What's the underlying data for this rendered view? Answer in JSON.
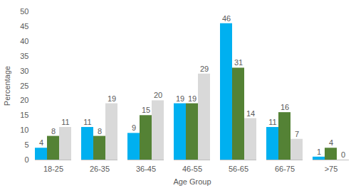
{
  "chart_data": {
    "type": "bar",
    "x_label": "Age Group",
    "y_label": "Percentage",
    "categories": [
      "18-25",
      "26-35",
      "36-45",
      "46-55",
      "56-65",
      "66-75",
      ">75"
    ],
    "series": [
      {
        "color": "#00B0F0",
        "values": [
          4,
          11,
          9,
          19,
          46,
          11,
          1
        ]
      },
      {
        "color": "#548235",
        "values": [
          8,
          8,
          15,
          19,
          31,
          16,
          4
        ]
      },
      {
        "color": "#D9D9D9",
        "values": [
          11,
          19,
          20,
          29,
          14,
          7,
          0
        ]
      }
    ],
    "ylim": [
      0,
      50
    ],
    "yticks": [
      0,
      5,
      10,
      15,
      20,
      25,
      30,
      35,
      40,
      45,
      50
    ],
    "grid": false,
    "data_labels": true
  }
}
